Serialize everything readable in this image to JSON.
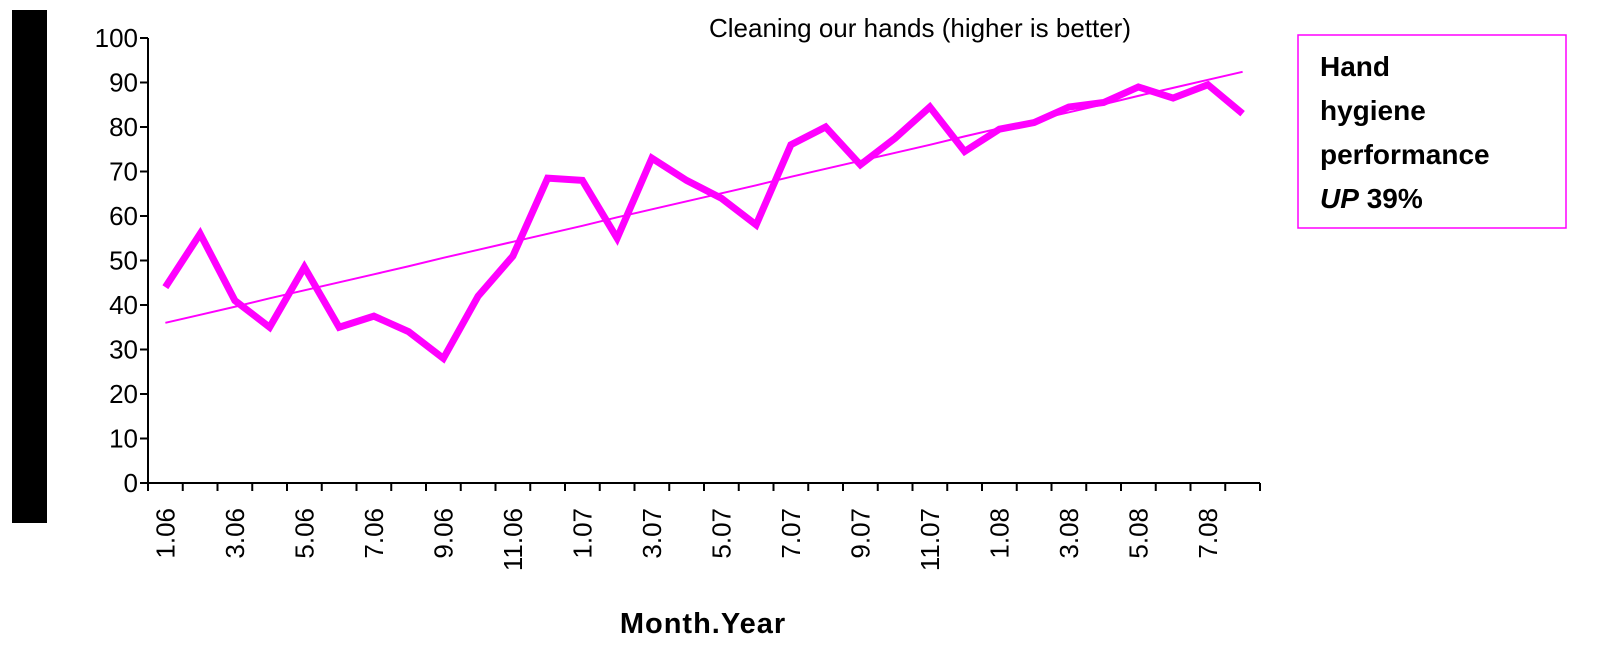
{
  "chart_data": {
    "type": "line",
    "title": "Cleaning our hands (higher is better)",
    "x_label": "Month.Year",
    "categories": [
      "1.06",
      null,
      "3.06",
      null,
      "5.06",
      null,
      "7.06",
      null,
      "9.06",
      null,
      "11.06",
      null,
      "1.07",
      null,
      "3.07",
      null,
      "5.07",
      null,
      "7.07",
      null,
      "9.07",
      null,
      "11.07",
      null,
      "1.08",
      null,
      "3.08",
      null,
      "5.08",
      null,
      "7.08",
      null
    ],
    "series": [
      {
        "color": "#ff00ff",
        "width": 7,
        "values": [
          44,
          56,
          41,
          35,
          48.5,
          35,
          37.5,
          34,
          28,
          42,
          51,
          68.5,
          68,
          55,
          73,
          68,
          64,
          58,
          76,
          80,
          71.5,
          77.5,
          84.5,
          74.5,
          79.5,
          81,
          84.5,
          85.5,
          89,
          86.5,
          89.5,
          83
        ]
      },
      {
        "color": "#ff00ff",
        "width": 2,
        "values": [
          36,
          37.8,
          39.6,
          41.5,
          43.3,
          45.1,
          46.9,
          48.7,
          50.6,
          52.4,
          54.2,
          56.0,
          57.8,
          59.7,
          61.5,
          63.3,
          65.1,
          66.9,
          68.8,
          70.6,
          72.4,
          74.2,
          76.0,
          77.9,
          79.7,
          81.5,
          83.3,
          85.1,
          87.0,
          88.8,
          90.6,
          92.4
        ]
      }
    ],
    "ylim": [
      0,
      100
    ],
    "yticks": [
      0,
      10,
      20,
      30,
      40,
      50,
      60,
      70,
      80,
      90,
      100
    ],
    "annotation": {
      "lines": [
        "Hand",
        "hygiene",
        "performance"
      ],
      "emphasis": "UP",
      "rest": "39%"
    }
  }
}
